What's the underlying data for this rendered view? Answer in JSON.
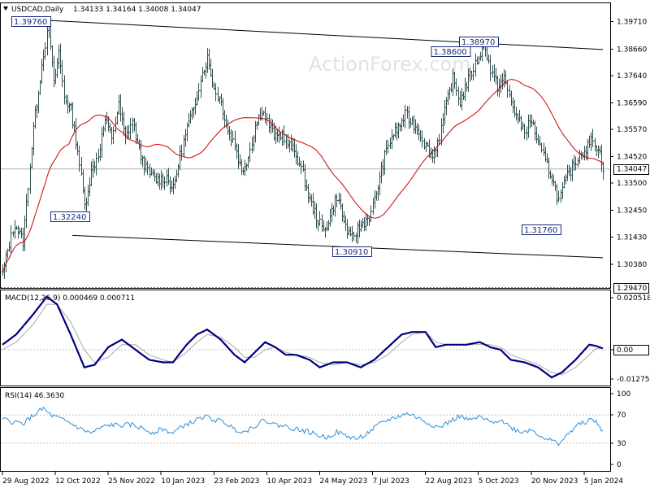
{
  "header": {
    "symbol": "USDCAD,Daily",
    "ohlc": "1.34133 1.34164 1.34008 1.34047"
  },
  "watermark": "ActionForex.com",
  "colors": {
    "bars": "#2f4f4f",
    "sma": "#cc0000",
    "macd": "#000080",
    "signal": "#a9a9a9",
    "rsi": "#2f8fd8",
    "trendline": "#000000",
    "label_border": "#1a2a7a"
  },
  "chart_data": [
    {
      "type": "candlestick",
      "title": "USDCAD,Daily",
      "ylim": [
        1.2947,
        1.4042
      ],
      "yticks": [
        "1.39710",
        "1.38660",
        "1.37640",
        "1.36590",
        "1.35570",
        "1.34520",
        "1.33500",
        "1.32450",
        "1.31430",
        "1.30380"
      ],
      "ytick_values": [
        1.3971,
        1.3866,
        1.3764,
        1.3659,
        1.3557,
        1.3452,
        1.335,
        1.3245,
        1.3143,
        1.3038
      ],
      "last_price": "1.34047",
      "last_price_value": 1.34047,
      "dotted_level": "1.29470",
      "dotted_level_value": 1.2947,
      "xticks": [
        "29 Aug 2022",
        "12 Oct 2022",
        "25 Nov 2022",
        "10 Jan 2023",
        "23 Feb 2023",
        "10 Apr 2023",
        "24 May 2023",
        "7 Jul 2023",
        "22 Aug 2023",
        "5 Oct 2023",
        "20 Nov 2023",
        "5 Jan 2024"
      ],
      "grid": false,
      "close_path": [
        [
          0,
          1.3
        ],
        [
          3,
          1.309
        ],
        [
          7,
          1.3195
        ],
        [
          12,
          1.3125
        ],
        [
          18,
          1.3565
        ],
        [
          24,
          1.3852
        ],
        [
          27,
          1.3955
        ],
        [
          30,
          1.3728
        ],
        [
          33,
          1.3855
        ],
        [
          36,
          1.3685
        ],
        [
          40,
          1.3632
        ],
        [
          44,
          1.3478
        ],
        [
          48,
          1.3262
        ],
        [
          52,
          1.3392
        ],
        [
          56,
          1.3462
        ],
        [
          60,
          1.3592
        ],
        [
          64,
          1.3528
        ],
        [
          68,
          1.3648
        ],
        [
          72,
          1.3522
        ],
        [
          76,
          1.3592
        ],
        [
          80,
          1.3472
        ],
        [
          85,
          1.3392
        ],
        [
          90,
          1.3362
        ],
        [
          96,
          1.3372
        ],
        [
          100,
          1.3325
        ],
        [
          104,
          1.3455
        ],
        [
          108,
          1.3562
        ],
        [
          112,
          1.3632
        ],
        [
          116,
          1.3755
        ],
        [
          120,
          1.3832
        ],
        [
          124,
          1.3712
        ],
        [
          128,
          1.3662
        ],
        [
          132,
          1.3552
        ],
        [
          136,
          1.3502
        ],
        [
          140,
          1.3392
        ],
        [
          144,
          1.3452
        ],
        [
          148,
          1.3572
        ],
        [
          152,
          1.3632
        ],
        [
          156,
          1.3572
        ],
        [
          160,
          1.3522
        ],
        [
          164,
          1.3542
        ],
        [
          168,
          1.3492
        ],
        [
          172,
          1.3462
        ],
        [
          176,
          1.3382
        ],
        [
          180,
          1.3282
        ],
        [
          184,
          1.3222
        ],
        [
          188,
          1.3162
        ],
        [
          192,
          1.3222
        ],
        [
          196,
          1.3302
        ],
        [
          200,
          1.3202
        ],
        [
          204,
          1.3132
        ],
        [
          208,
          1.3172
        ],
        [
          212,
          1.3202
        ],
        [
          216,
          1.3232
        ],
        [
          220,
          1.3342
        ],
        [
          224,
          1.3452
        ],
        [
          228,
          1.3532
        ],
        [
          232,
          1.3562
        ],
        [
          236,
          1.3612
        ],
        [
          240,
          1.3582
        ],
        [
          244,
          1.3552
        ],
        [
          248,
          1.3492
        ],
        [
          252,
          1.3452
        ],
        [
          256,
          1.3532
        ],
        [
          260,
          1.3652
        ],
        [
          264,
          1.3752
        ],
        [
          268,
          1.3662
        ],
        [
          272,
          1.3732
        ],
        [
          276,
          1.3792
        ],
        [
          280,
          1.3852
        ],
        [
          283,
          1.3878
        ],
        [
          286,
          1.3782
        ],
        [
          290,
          1.3722
        ],
        [
          294,
          1.3752
        ],
        [
          298,
          1.3662
        ],
        [
          302,
          1.3592
        ],
        [
          306,
          1.3552
        ],
        [
          310,
          1.3592
        ],
        [
          314,
          1.3502
        ],
        [
          318,
          1.3432
        ],
        [
          322,
          1.3372
        ],
        [
          326,
          1.3282
        ],
        [
          330,
          1.3362
        ],
        [
          334,
          1.3412
        ],
        [
          338,
          1.3462
        ],
        [
          342,
          1.3482
        ],
        [
          346,
          1.3522
        ],
        [
          350,
          1.3462
        ],
        [
          352,
          1.3412
        ]
      ]
    },
    {
      "type": "line",
      "title": "MACD(12,26,9) 0.000469 0.000711",
      "yticks": [
        "0.020518",
        "0.00",
        "-0.012755"
      ],
      "ytick_values": [
        0.020518,
        0.0,
        -0.012755
      ],
      "series": [
        {
          "name": "MACD",
          "points": [
            [
              0,
              0.002
            ],
            [
              8,
              0.006
            ],
            [
              18,
              0.014
            ],
            [
              26,
              0.021
            ],
            [
              32,
              0.018
            ],
            [
              40,
              0.006
            ],
            [
              48,
              -0.007
            ],
            [
              54,
              -0.006
            ],
            [
              62,
              0.001
            ],
            [
              70,
              0.004
            ],
            [
              78,
              0.0
            ],
            [
              86,
              -0.004
            ],
            [
              94,
              -0.005
            ],
            [
              100,
              -0.005
            ],
            [
              108,
              0.002
            ],
            [
              114,
              0.006
            ],
            [
              120,
              0.008
            ],
            [
              128,
              0.004
            ],
            [
              136,
              -0.002
            ],
            [
              142,
              -0.005
            ],
            [
              148,
              -0.001
            ],
            [
              154,
              0.003
            ],
            [
              160,
              0.001
            ],
            [
              166,
              -0.002
            ],
            [
              172,
              -0.002
            ],
            [
              180,
              -0.004
            ],
            [
              186,
              -0.007
            ],
            [
              194,
              -0.005
            ],
            [
              202,
              -0.005
            ],
            [
              210,
              -0.007
            ],
            [
              218,
              -0.004
            ],
            [
              226,
              0.001
            ],
            [
              234,
              0.006
            ],
            [
              240,
              0.007
            ],
            [
              248,
              0.007
            ],
            [
              254,
              0.001
            ],
            [
              260,
              0.002
            ],
            [
              266,
              0.002
            ],
            [
              272,
              0.002
            ],
            [
              280,
              0.003
            ],
            [
              286,
              0.001
            ],
            [
              292,
              0.0
            ],
            [
              298,
              -0.004
            ],
            [
              306,
              -0.005
            ],
            [
              314,
              -0.007
            ],
            [
              322,
              -0.011
            ],
            [
              328,
              -0.009
            ],
            [
              336,
              -0.004
            ],
            [
              344,
              0.002
            ],
            [
              348,
              0.0015
            ],
            [
              352,
              0.0005
            ]
          ]
        },
        {
          "name": "Signal",
          "points": [
            [
              0,
              0.0
            ],
            [
              8,
              0.003
            ],
            [
              18,
              0.01
            ],
            [
              26,
              0.018
            ],
            [
              32,
              0.018
            ],
            [
              40,
              0.011
            ],
            [
              48,
              0.0
            ],
            [
              54,
              -0.005
            ],
            [
              62,
              -0.003
            ],
            [
              70,
              0.002
            ],
            [
              78,
              0.002
            ],
            [
              86,
              -0.002
            ],
            [
              94,
              -0.004
            ],
            [
              100,
              -0.005
            ],
            [
              108,
              -0.001
            ],
            [
              114,
              0.003
            ],
            [
              120,
              0.006
            ],
            [
              128,
              0.005
            ],
            [
              136,
              0.001
            ],
            [
              142,
              -0.003
            ],
            [
              148,
              -0.003
            ],
            [
              154,
              0.0
            ],
            [
              160,
              0.001
            ],
            [
              166,
              -0.001
            ],
            [
              172,
              -0.002
            ],
            [
              180,
              -0.003
            ],
            [
              186,
              -0.005
            ],
            [
              194,
              -0.006
            ],
            [
              202,
              -0.005
            ],
            [
              210,
              -0.006
            ],
            [
              218,
              -0.005
            ],
            [
              226,
              -0.002
            ],
            [
              234,
              0.003
            ],
            [
              240,
              0.006
            ],
            [
              248,
              0.007
            ],
            [
              254,
              0.003
            ],
            [
              260,
              0.002
            ],
            [
              266,
              0.002
            ],
            [
              272,
              0.002
            ],
            [
              280,
              0.002
            ],
            [
              286,
              0.002
            ],
            [
              292,
              0.001
            ],
            [
              298,
              -0.002
            ],
            [
              306,
              -0.004
            ],
            [
              314,
              -0.006
            ],
            [
              322,
              -0.009
            ],
            [
              328,
              -0.01
            ],
            [
              336,
              -0.007
            ],
            [
              344,
              -0.002
            ],
            [
              348,
              0.0004
            ],
            [
              352,
              0.0007
            ]
          ]
        }
      ]
    },
    {
      "type": "line",
      "title": "RSI(14) 46.3630",
      "ylim": [
        0,
        100
      ],
      "yticks": [
        "100",
        "70",
        "30",
        "0"
      ],
      "ytick_values": [
        100,
        70,
        30,
        0
      ],
      "series": [
        {
          "name": "RSI",
          "points": [
            [
              0,
              64
            ],
            [
              6,
              60
            ],
            [
              12,
              58
            ],
            [
              18,
              69
            ],
            [
              24,
              79
            ],
            [
              28,
              70
            ],
            [
              34,
              64
            ],
            [
              40,
              58
            ],
            [
              46,
              50
            ],
            [
              52,
              44
            ],
            [
              58,
              52
            ],
            [
              64,
              56
            ],
            [
              70,
              55
            ],
            [
              76,
              56
            ],
            [
              82,
              51
            ],
            [
              88,
              45
            ],
            [
              94,
              50
            ],
            [
              100,
              44
            ],
            [
              106,
              55
            ],
            [
              112,
              60
            ],
            [
              118,
              68
            ],
            [
              124,
              63
            ],
            [
              130,
              60
            ],
            [
              136,
              50
            ],
            [
              142,
              46
            ],
            [
              148,
              55
            ],
            [
              154,
              63
            ],
            [
              160,
              56
            ],
            [
              166,
              54
            ],
            [
              172,
              50
            ],
            [
              178,
              47
            ],
            [
              184,
              42
            ],
            [
              190,
              38
            ],
            [
              196,
              46
            ],
            [
              202,
              40
            ],
            [
              208,
              36
            ],
            [
              214,
              44
            ],
            [
              220,
              55
            ],
            [
              226,
              63
            ],
            [
              232,
              68
            ],
            [
              238,
              72
            ],
            [
              244,
              65
            ],
            [
              250,
              58
            ],
            [
              256,
              52
            ],
            [
              262,
              60
            ],
            [
              268,
              68
            ],
            [
              274,
              62
            ],
            [
              280,
              67
            ],
            [
              286,
              59
            ],
            [
              292,
              64
            ],
            [
              298,
              52
            ],
            [
              304,
              46
            ],
            [
              310,
              49
            ],
            [
              316,
              40
            ],
            [
              322,
              33
            ],
            [
              326,
              30
            ],
            [
              330,
              38
            ],
            [
              336,
              54
            ],
            [
              342,
              60
            ],
            [
              346,
              64
            ],
            [
              350,
              54
            ],
            [
              352,
              46
            ]
          ]
        }
      ]
    }
  ],
  "annotations": [
    "1.39760",
    "1.38600",
    "1.38970",
    "1.32240",
    "1.30910",
    "1.31760"
  ],
  "annotation_values": [
    1.3976,
    1.386,
    1.3897,
    1.3224,
    1.3091,
    1.3176
  ],
  "trendlines": [
    {
      "points": [
        [
          27,
          1.3976
        ],
        [
          352,
          1.3864
        ]
      ]
    },
    {
      "points": [
        [
          41,
          1.3149
        ],
        [
          352,
          1.3063
        ]
      ]
    }
  ]
}
